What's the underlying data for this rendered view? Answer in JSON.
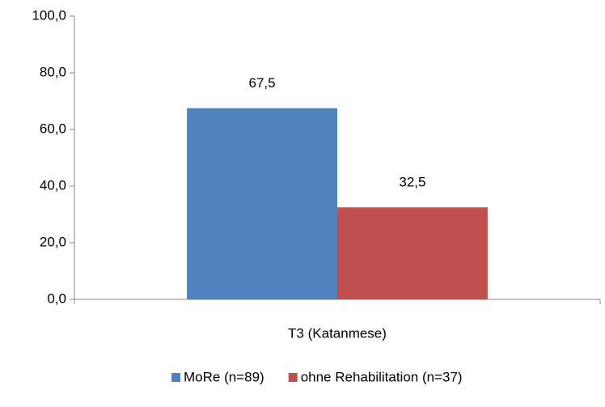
{
  "chart_data": {
    "type": "bar",
    "categories": [
      "T3 (Katanmese)"
    ],
    "series": [
      {
        "name": "MoRe (n=89)",
        "color": "#4f81bd",
        "values": [
          67.5
        ],
        "value_labels": [
          "67,5"
        ]
      },
      {
        "name": "ohne Rehabilitation (n=37)",
        "color": "#c0504d",
        "values": [
          32.5
        ],
        "value_labels": [
          "32,5"
        ]
      }
    ],
    "ylim": [
      0,
      100
    ],
    "yticks": [
      {
        "value": 0,
        "label": "0,0"
      },
      {
        "value": 20,
        "label": "20,0"
      },
      {
        "value": 40,
        "label": "40,0"
      },
      {
        "value": 60,
        "label": "60,0"
      },
      {
        "value": 80,
        "label": "80,0"
      },
      {
        "value": 100,
        "label": "100,0"
      }
    ],
    "grid": false,
    "legend": "bottom"
  }
}
